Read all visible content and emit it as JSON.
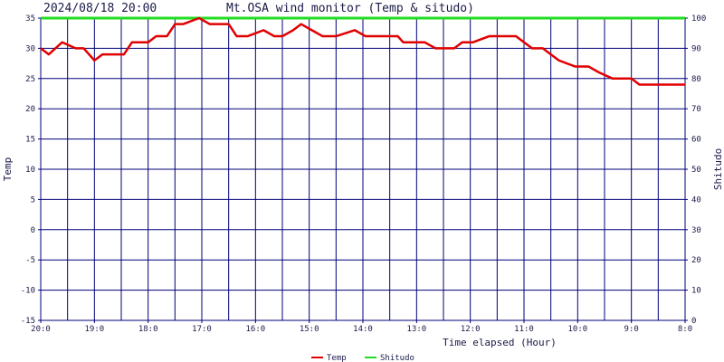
{
  "header": {
    "timestamp": "2024/08/18 20:00",
    "title": "Mt.OSA wind monitor (Temp & situdo)"
  },
  "colors": {
    "grid": "#00007a",
    "temp": "#e00000",
    "humidity": "#22dd22",
    "text": "#1a1a4a",
    "background": "#ffffff"
  },
  "chart_data": {
    "type": "line",
    "title": "Mt.OSA wind monitor (Temp & situdo)",
    "xlabel": "Time elapsed (Hour)",
    "ylabel_left": "Temp",
    "ylabel_right": "Shitudo",
    "x_ticks": [
      "20:0",
      "19:0",
      "18:0",
      "17:0",
      "16:0",
      "15:0",
      "14:0",
      "13:0",
      "12:0",
      "11:0",
      "10:0",
      "9:0",
      "8:0"
    ],
    "x_range_hours": [
      12,
      0
    ],
    "ylim_left": [
      -15,
      35
    ],
    "ylim_right": [
      0,
      100
    ],
    "y_ticks_left": [
      35,
      30,
      25,
      20,
      15,
      10,
      5,
      0,
      -5,
      -10,
      -15
    ],
    "y_ticks_right": [
      100,
      90,
      80,
      70,
      60,
      50,
      40,
      30,
      20,
      10,
      0
    ],
    "grid": true,
    "legend_position": "bottom-center",
    "series": [
      {
        "name": "Temp",
        "axis": "left",
        "color": "#e00000",
        "x_hours_ago": [
          0,
          0.85,
          1.0,
          1.35,
          1.6,
          1.8,
          2.05,
          2.35,
          2.5,
          2.65,
          2.85,
          3.15,
          3.3,
          3.5,
          3.65,
          3.95,
          4.15,
          4.3,
          4.5,
          4.65,
          4.85,
          5.25,
          5.35,
          5.5,
          5.8,
          5.95,
          6.15,
          6.5,
          6.75,
          6.95,
          7.15,
          7.3,
          7.5,
          7.65,
          7.85,
          8.15,
          8.35,
          8.5,
          8.65,
          8.85,
          9.05,
          9.35,
          9.5,
          9.65,
          9.85,
          10.0,
          10.3,
          10.45,
          10.65,
          10.85,
          11.0,
          11.2,
          11.35,
          11.6,
          11.85,
          12.0
        ],
        "values": [
          24,
          24,
          25,
          25,
          26,
          27,
          27,
          28,
          29,
          30,
          30,
          32,
          32,
          32,
          32,
          31,
          31,
          30,
          30,
          30,
          31,
          31,
          32,
          32,
          32,
          32,
          33,
          32,
          32,
          33,
          34,
          33,
          32,
          32,
          33,
          32,
          32,
          34,
          34,
          34,
          35,
          34,
          34,
          32,
          32,
          31,
          31,
          29,
          29,
          29,
          28,
          30,
          30,
          31,
          29,
          30
        ]
      },
      {
        "name": "Shitudo",
        "axis": "right",
        "color": "#22dd22",
        "x_hours_ago": [
          0,
          12
        ],
        "values": [
          100,
          100
        ]
      }
    ]
  }
}
